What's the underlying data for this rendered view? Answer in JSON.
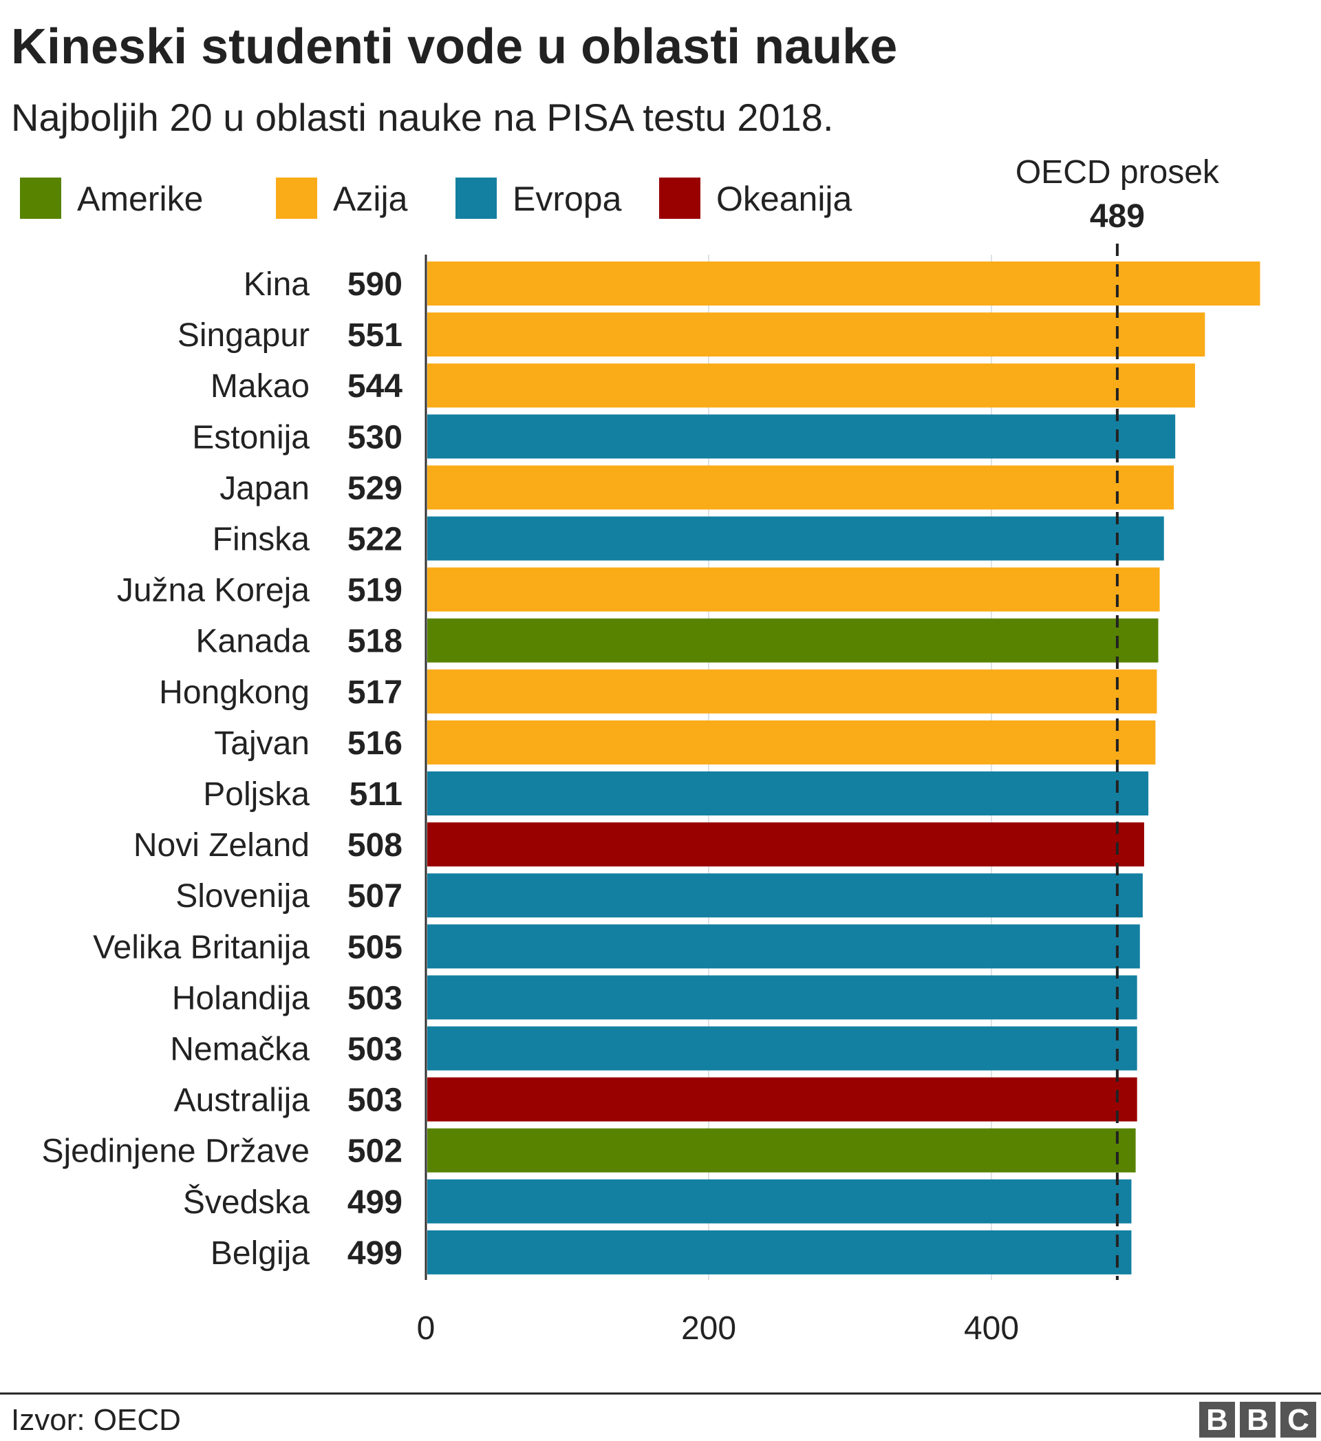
{
  "title": "Kineski studenti vode u oblasti nauke",
  "subtitle": "Najboljih 20 u oblasti nauke na PISA testu 2018.",
  "source": "Izvor: OECD",
  "logo": "BBC",
  "legend": [
    {
      "label": "Amerike",
      "color": "#588300"
    },
    {
      "label": "Azija",
      "color": "#FAAB18"
    },
    {
      "label": "Evropa",
      "color": "#1380A1"
    },
    {
      "label": "Okeanija",
      "color": "#990000"
    }
  ],
  "reference_line": {
    "label": "OECD prosek",
    "value_label": "489",
    "value": 489
  },
  "chart_data": {
    "type": "bar",
    "orientation": "horizontal",
    "title": "Kineski studenti vode u oblasti nauke",
    "subtitle": "Najboljih 20 u oblasti nauke na PISA testu 2018.",
    "xlabel": "",
    "ylabel": "",
    "xlim": [
      0,
      600
    ],
    "x_ticks": [
      "0",
      "200",
      "400"
    ],
    "grid": true,
    "legend_position": "top",
    "categories": [
      "Kina",
      "Singapur",
      "Makao",
      "Estonija",
      "Japan",
      "Finska",
      "Južna Koreja",
      "Kanada",
      "Hongkong",
      "Tajvan",
      "Poljska",
      "Novi Zeland",
      "Slovenija",
      "Velika Britanija",
      "Holandija",
      "Nemačka",
      "Australija",
      "Sjedinjene Države",
      "Švedska",
      "Belgija"
    ],
    "values": [
      590,
      551,
      544,
      530,
      529,
      522,
      519,
      518,
      517,
      516,
      511,
      508,
      507,
      505,
      503,
      503,
      503,
      502,
      499,
      499
    ],
    "value_labels": [
      "590",
      "551",
      "544",
      "530",
      "529",
      "522",
      "519",
      "518",
      "517",
      "516",
      "511",
      "508",
      "507",
      "505",
      "503",
      "503",
      "503",
      "502",
      "499",
      "499"
    ],
    "regions": [
      "Azija",
      "Azija",
      "Azija",
      "Evropa",
      "Azija",
      "Evropa",
      "Azija",
      "Amerike",
      "Azija",
      "Azija",
      "Evropa",
      "Okeanija",
      "Evropa",
      "Evropa",
      "Evropa",
      "Evropa",
      "Okeanija",
      "Amerike",
      "Evropa",
      "Evropa"
    ]
  }
}
